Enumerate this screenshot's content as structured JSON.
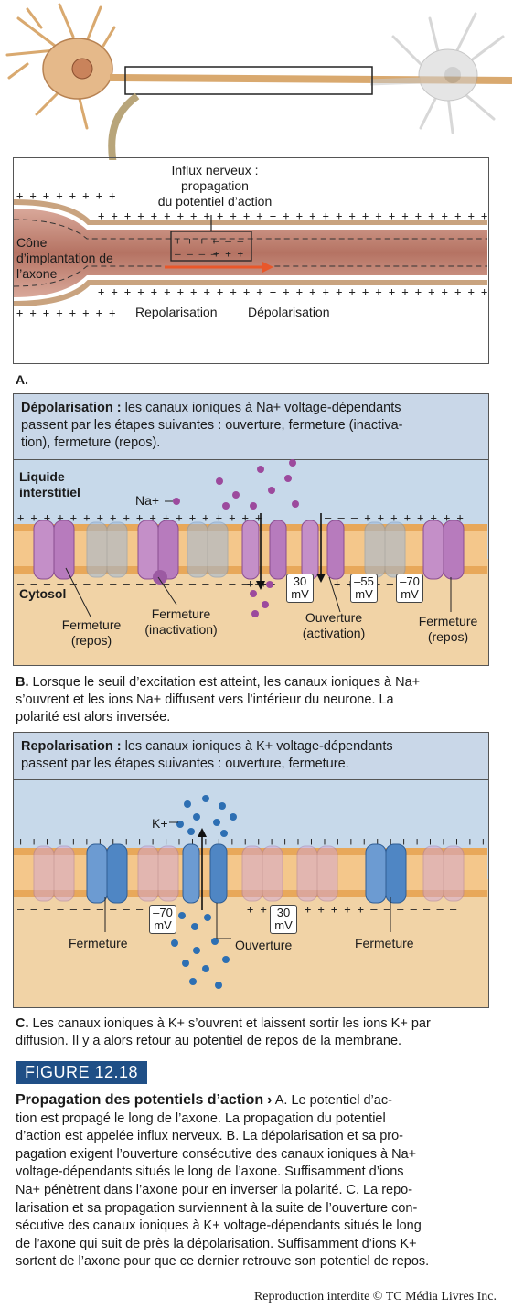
{
  "panel_a": {
    "influx_title": [
      "Influx nerveux :",
      "propagation",
      "du potentiel d’action"
    ],
    "cone_label": [
      "Cône",
      "d’implantation de",
      "l’axone"
    ],
    "repolarisation": "Repolarisation",
    "depolarisation": "Dépolarisation",
    "letter": "A."
  },
  "panel_b": {
    "header_bold": "Dépolarisation :",
    "header_lines": [
      "les canaux ioniques à Na+ voltage-dépendants",
      "passent par les étapes suivantes : ouverture, fermeture (inactiva-",
      "tion), fermeture (repos)."
    ],
    "liquide": [
      "Liquide",
      "interstitiel"
    ],
    "ion": "Na+",
    "cytosol": "Cytosol",
    "fermeture_repos_left": [
      "Fermeture",
      "(repos)"
    ],
    "fermeture_inactivation": [
      "Fermeture",
      "(inactivation)"
    ],
    "ouverture_activation": [
      "Ouverture",
      "(activation)"
    ],
    "fermeture_repos_right": [
      "Fermeture",
      "(repos)"
    ],
    "mv_30": [
      "30",
      "mV"
    ],
    "mv_55": [
      "–55",
      "mV"
    ],
    "mv_70": [
      "–70",
      "mV"
    ],
    "caption_bold": "B.",
    "caption": [
      "Lorsque le seuil d’excitation est atteint, les canaux ioniques à Na+",
      "s’ouvrent et les ions Na+ diffusent vers l’intérieur du neurone. La",
      "polarité est alors inversée."
    ]
  },
  "panel_c": {
    "header_bold": "Repolarisation :",
    "header_lines": [
      "les canaux ioniques à K+ voltage-dépendants",
      "passent par les étapes suivantes : ouverture, fermeture."
    ],
    "ion": "K+",
    "fermeture_left": "Fermeture",
    "ouverture": "Ouverture",
    "fermeture_right": "Fermeture",
    "mv_70": [
      "–70",
      "mV"
    ],
    "mv_30": [
      "30",
      "mV"
    ],
    "caption_bold": "C.",
    "caption": [
      "Les canaux ioniques à K+ s’ouvrent et laissent sortir les ions K+ par",
      "diffusion. Il y a alors retour au potentiel de repos de la membrane."
    ]
  },
  "figure": {
    "badge": "FIGURE 12.18",
    "title": "Propagation des potentiels d’action",
    "arrow": "›",
    "body": [
      "tion est propagé le long de l’axone. La propagation du potentiel",
      "d’action est appelée influx nerveux. B. La dépolarisation et sa pro-",
      "pagation exigent l’ouverture consécutive des canaux ioniques à Na+",
      "voltage-dépendants situés le long de l’axone. Suffisamment d’ions",
      "Na+ pénètrent dans l’axone pour en inverser la polarité. C. La repo-",
      "larisation et sa propagation surviennent à la suite de l’ouverture con-",
      "sécutive des canaux ioniques à K+ voltage-dépendants situés le long",
      "de l’axone qui suit de près la dépolarisation. Suffisamment d’ions K+",
      "sortent de l’axone pour que ce dernier retrouve son potentiel de repos."
    ],
    "first_line_tail": "A. Le potentiel d’ac-",
    "copyright": "Reproduction interdite © TC Média Livres Inc."
  },
  "colors": {
    "header_blue": "#c9d7e8",
    "fluid_blue": "#c7d9ea",
    "cytosol": "#f1d3a6",
    "na_channel": "#b77bbd",
    "k_channel": "#4f86c4",
    "na_ion": "#9c4a9d",
    "k_ion": "#2d6fb3",
    "axon": "#c98f7f",
    "arrow": "#e8572a",
    "badge": "#1f4f86"
  }
}
